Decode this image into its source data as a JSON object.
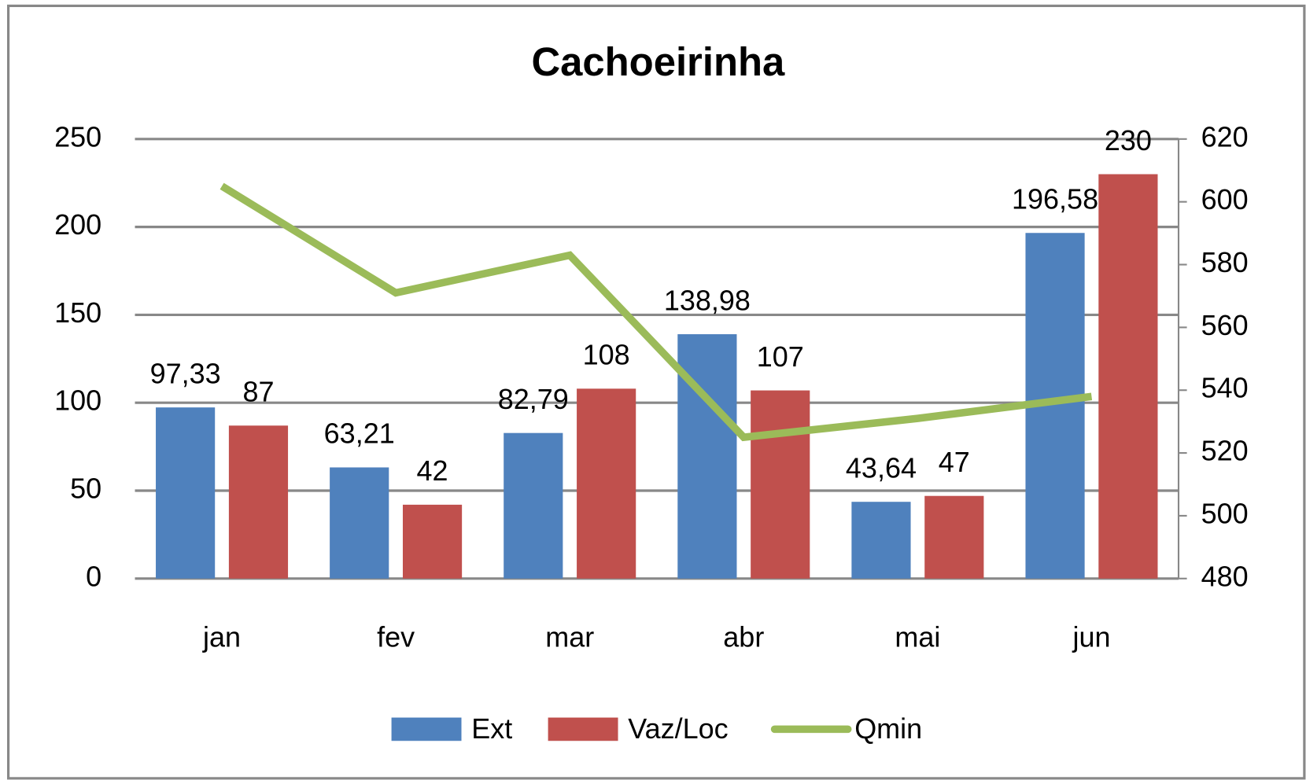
{
  "chart_data": {
    "type": "bar",
    "title": "Cachoeirinha",
    "categories": [
      "jan",
      "fev",
      "mar",
      "abr",
      "mai",
      "jun"
    ],
    "series": [
      {
        "name": "Ext",
        "color": "#4f81bd",
        "values": [
          97.33,
          63.21,
          82.79,
          138.98,
          43.64,
          196.58
        ],
        "value_labels": [
          "97,33",
          "63,21",
          "82,79",
          "138,98",
          "43,64",
          "196,58"
        ]
      },
      {
        "name": "Vaz/Loc",
        "color": "#c0504d",
        "values": [
          87,
          42,
          108,
          107,
          47,
          230
        ]
      },
      {
        "name": "Qmin",
        "color": "#9bbb59",
        "type": "line",
        "axis": "y2",
        "values": [
          605,
          571,
          583,
          525,
          531,
          538
        ]
      }
    ],
    "ylim": [
      0,
      250
    ],
    "yticks": [
      0,
      50,
      100,
      150,
      200,
      250
    ],
    "y2lim": [
      480,
      620
    ],
    "y2ticks": [
      480,
      500,
      520,
      540,
      560,
      580,
      600,
      620
    ],
    "grid": true,
    "legend": "bottom"
  }
}
